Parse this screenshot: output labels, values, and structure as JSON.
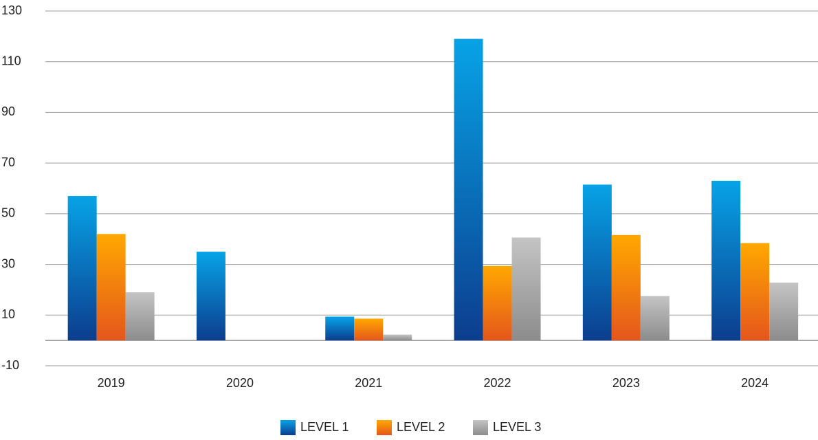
{
  "chart_data": {
    "type": "bar",
    "categories": [
      "2019",
      "2020",
      "2021",
      "2022",
      "2023",
      "2024"
    ],
    "series": [
      {
        "name": "LEVEL 1",
        "color": "#0a6cc0",
        "gradient": [
          "#07a3e6",
          "#0c3d8e"
        ],
        "values": [
          57,
          35,
          9.4,
          119,
          61.5,
          63
        ]
      },
      {
        "name": "LEVEL 2",
        "color": "#f0821a",
        "gradient": [
          "#ffa800",
          "#e4561c"
        ],
        "values": [
          42,
          0,
          8.6,
          29.4,
          41.6,
          38.4
        ]
      },
      {
        "name": "LEVEL 3",
        "color": "#a5a5a5",
        "gradient": [
          "#c4c4c4",
          "#8c8c8c"
        ],
        "values": [
          19,
          0,
          2.3,
          40.6,
          17.5,
          22.8
        ]
      }
    ],
    "ylim": [
      -10,
      130
    ],
    "yticks": [
      -10,
      10,
      30,
      50,
      70,
      90,
      110,
      130
    ],
    "grid": true
  }
}
